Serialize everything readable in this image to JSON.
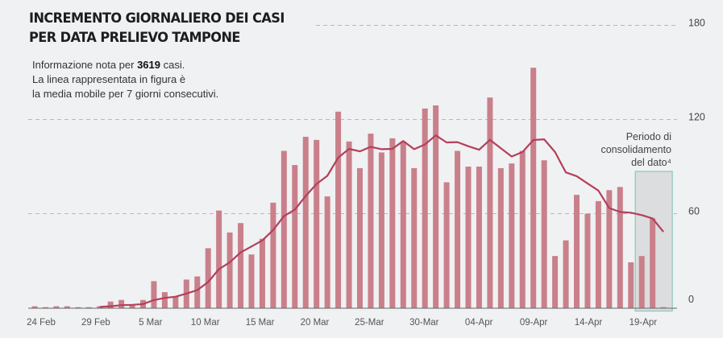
{
  "chart_data": {
    "type": "bar",
    "title": [
      "INCREMENTO GIORNALIERO DEI CASI",
      "PER DATA PRELIEVO TAMPONE"
    ],
    "subtitle": {
      "line1_prefix": "Informazione nota per ",
      "line1_bold": "3619",
      "line1_suffix": " casi.",
      "line2": "La linea rappresentata in figura è",
      "line3": "la media mobile per 7 giorni consecutivi."
    },
    "categories": [
      "24 Feb",
      "25 Feb",
      "26 Feb",
      "27 Feb",
      "28 Feb",
      "29 Feb",
      "1 Mar",
      "2 Mar",
      "3 Mar",
      "4 Mar",
      "5 Mar",
      "6 Mar",
      "7 Mar",
      "8 Mar",
      "9 Mar",
      "10 Mar",
      "11 Mar",
      "12 Mar",
      "13 Mar",
      "14 Mar",
      "15 Mar",
      "16 Mar",
      "17 Mar",
      "18 Mar",
      "19 Mar",
      "20 Mar",
      "21 Mar",
      "22 Mar",
      "23 Mar",
      "24 Mar",
      "25 Mar",
      "26 Mar",
      "27 Mar",
      "28 Mar",
      "29 Mar",
      "30 Mar",
      "31 Mar",
      "1 Apr",
      "2 Apr",
      "3 Apr",
      "4 Apr",
      "5 Apr",
      "6 Apr",
      "7 Apr",
      "8 Apr",
      "9 Apr",
      "10 Apr",
      "11 Apr",
      "12 Apr",
      "13 Apr",
      "14 Apr",
      "15 Apr",
      "16 Apr",
      "17 Apr",
      "18 Apr",
      "19 Apr",
      "20 Apr",
      "21 Apr",
      "22 Apr"
    ],
    "values": [
      1,
      0,
      1,
      1,
      0,
      0,
      1,
      4,
      5,
      2,
      5,
      17,
      10,
      7,
      18,
      20,
      38,
      62,
      48,
      54,
      34,
      44,
      67,
      100,
      91,
      109,
      107,
      71,
      125,
      106,
      89,
      111,
      99,
      108,
      106,
      89,
      127,
      129,
      80,
      100,
      90,
      90,
      134,
      89,
      92,
      100,
      153,
      94,
      33,
      43,
      72,
      60,
      68,
      75,
      77,
      29,
      33,
      57,
      0
    ],
    "moving_average_7d": [
      null,
      null,
      null,
      null,
      null,
      null,
      0.6,
      1.0,
      1.7,
      1.9,
      2.4,
      4.9,
      6.3,
      7.1,
      9.1,
      11.3,
      16.4,
      24.6,
      29.0,
      35.3,
      39.1,
      42.9,
      49.6,
      58.4,
      62.6,
      71.3,
      78.9,
      84.1,
      95.7,
      101.3,
      99.7,
      102.6,
      101.1,
      101.3,
      106.3,
      101.1,
      104.1,
      109.9,
      105.4,
      105.6,
      103.0,
      100.7,
      107.1,
      101.7,
      96.4,
      99.3,
      106.9,
      107.4,
      99.3,
      86.3,
      83.9,
      79.3,
      74.7,
      63.6,
      61.1,
      60.6,
      59.1,
      57.0,
      48.4
    ],
    "x_tick_labels": [
      "24 Feb",
      "29 Feb",
      "5 Mar",
      "10 Mar",
      "15 Mar",
      "20 Mar",
      "25-Mar",
      "30-Mar",
      "04-Apr",
      "09-Apr",
      "14-Apr",
      "19-Apr"
    ],
    "y_ticks": [
      0,
      60,
      120,
      180
    ],
    "ylim": [
      0,
      180
    ],
    "y_axis_side": "right",
    "grid": "dashed horizontal",
    "consolidation_period": {
      "label": [
        "Periodo di",
        "consolidamento",
        "del dato⁴"
      ],
      "from": "20 Apr",
      "to": "22 Apr"
    },
    "colors": {
      "bar": "#c9808a",
      "line": "#b3405a",
      "grid": "#b8b8b8",
      "consolidation_fill": "#dcdddf",
      "consolidation_border": "#86c8bb",
      "background": "#f0f1f3"
    }
  }
}
